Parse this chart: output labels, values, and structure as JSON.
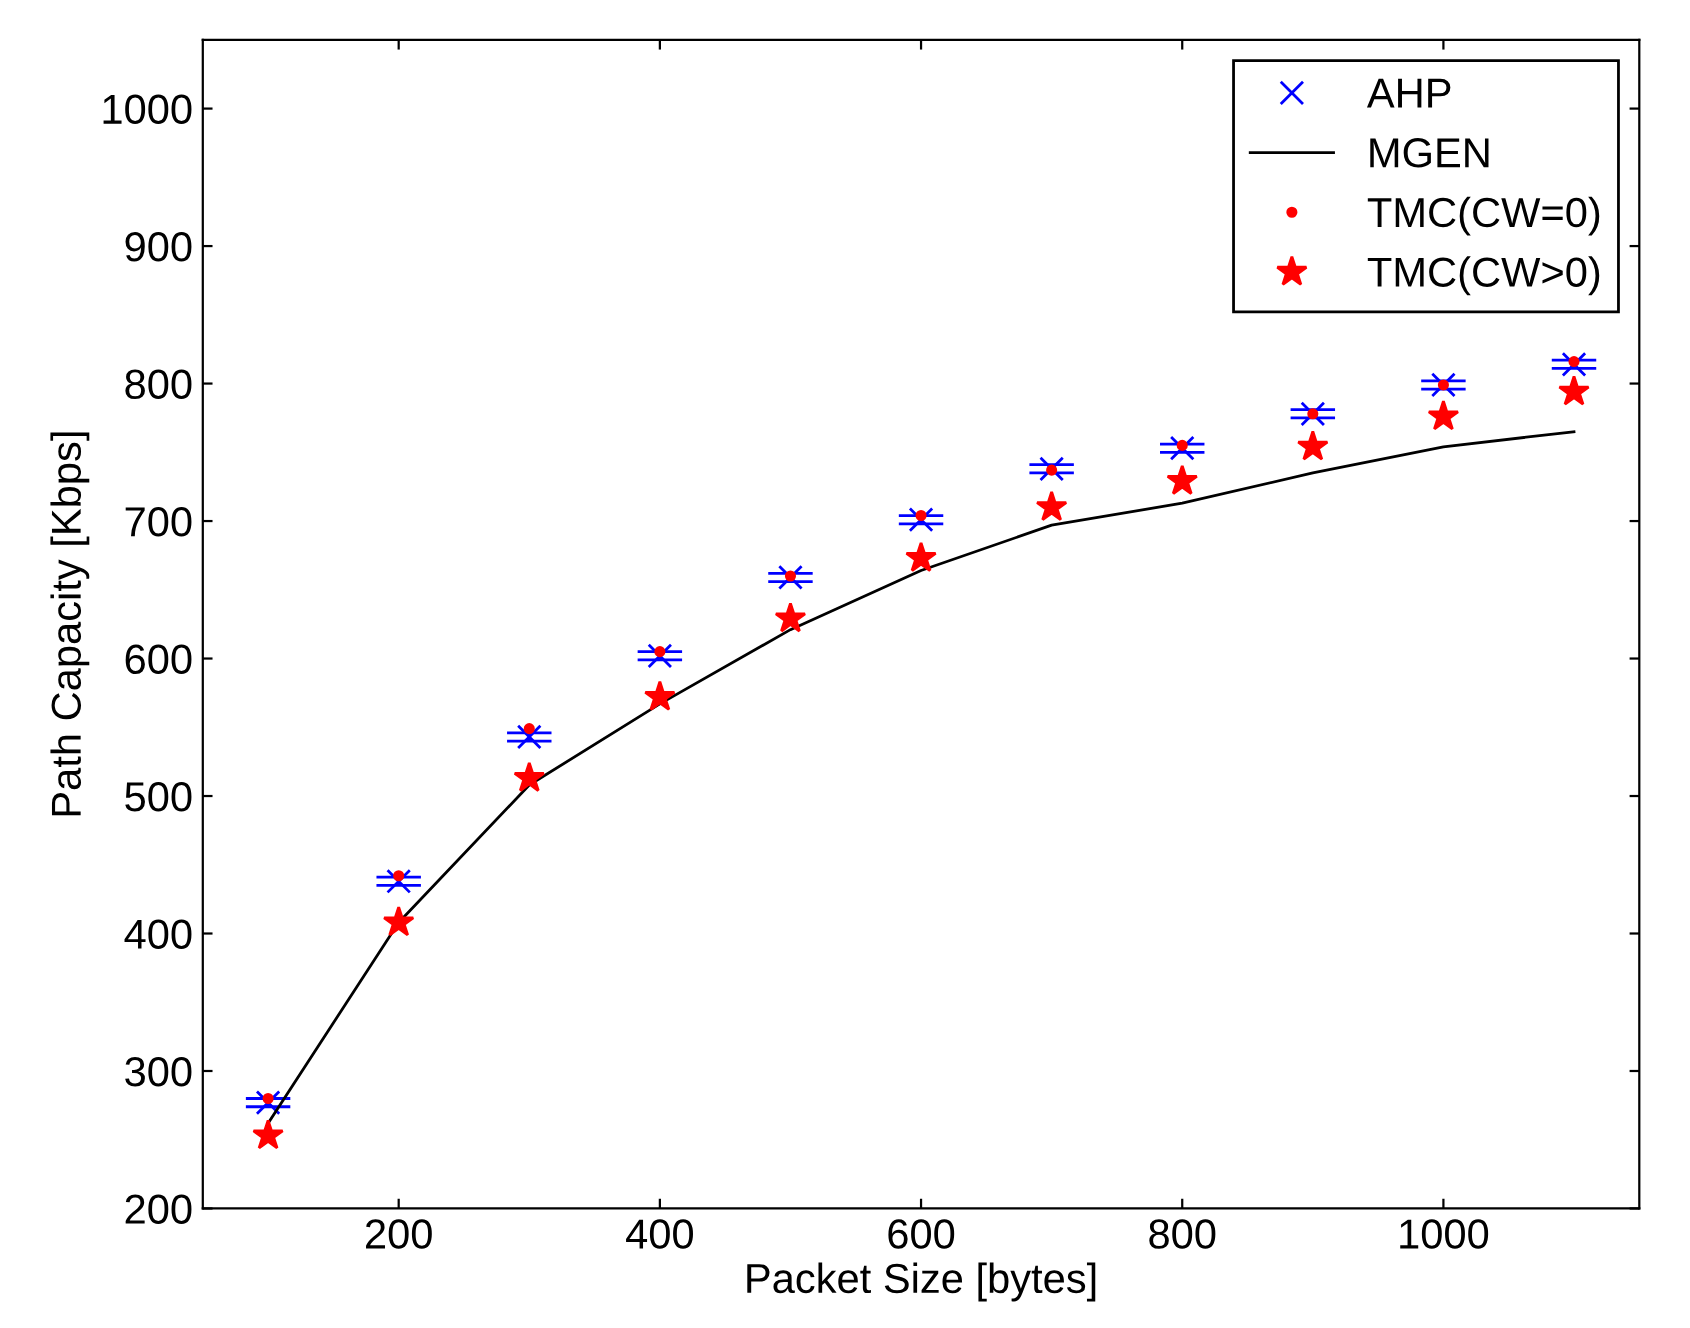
{
  "chart_data": {
    "type": "scatter",
    "xlabel": "Packet Size [bytes]",
    "ylabel": "Path Capacity [Kbps]",
    "x": [
      100,
      200,
      300,
      400,
      500,
      600,
      700,
      800,
      900,
      1000,
      1100
    ],
    "series": [
      {
        "name": "AHP",
        "color": "#0000ff",
        "marker": "cross",
        "values": [
          277,
          438,
          543,
          602,
          659,
          701,
          738,
          753,
          778,
          799,
          814
        ],
        "errors": [
          3,
          3,
          3,
          3,
          3,
          3,
          3,
          3,
          3,
          3,
          3
        ]
      },
      {
        "name": "MGEN",
        "type": "line",
        "color": "#000000",
        "marker": "none",
        "line_style": "solid",
        "values": [
          262,
          408,
          508,
          567,
          621,
          664,
          697,
          713,
          735,
          754,
          765
        ]
      },
      {
        "name": "TMC(CW=0)",
        "color": "#ff0000",
        "marker": "circle",
        "values": [
          280,
          442,
          549,
          605,
          660,
          704,
          737,
          755,
          778,
          799,
          816
        ]
      },
      {
        "name": "TMC(CW>0)",
        "color": "#ff0000",
        "marker": "star",
        "values": [
          253,
          408,
          513,
          572,
          629,
          673,
          710,
          729,
          754,
          776,
          794
        ]
      }
    ],
    "xlim": [
      50,
      1150
    ],
    "xticks": [
      200,
      400,
      600,
      800,
      1000
    ],
    "ylim": [
      200,
      1050
    ],
    "yticks": [
      200,
      300,
      400,
      500,
      600,
      700,
      800,
      900,
      1000
    ],
    "grid": false,
    "legend": "top right"
  }
}
